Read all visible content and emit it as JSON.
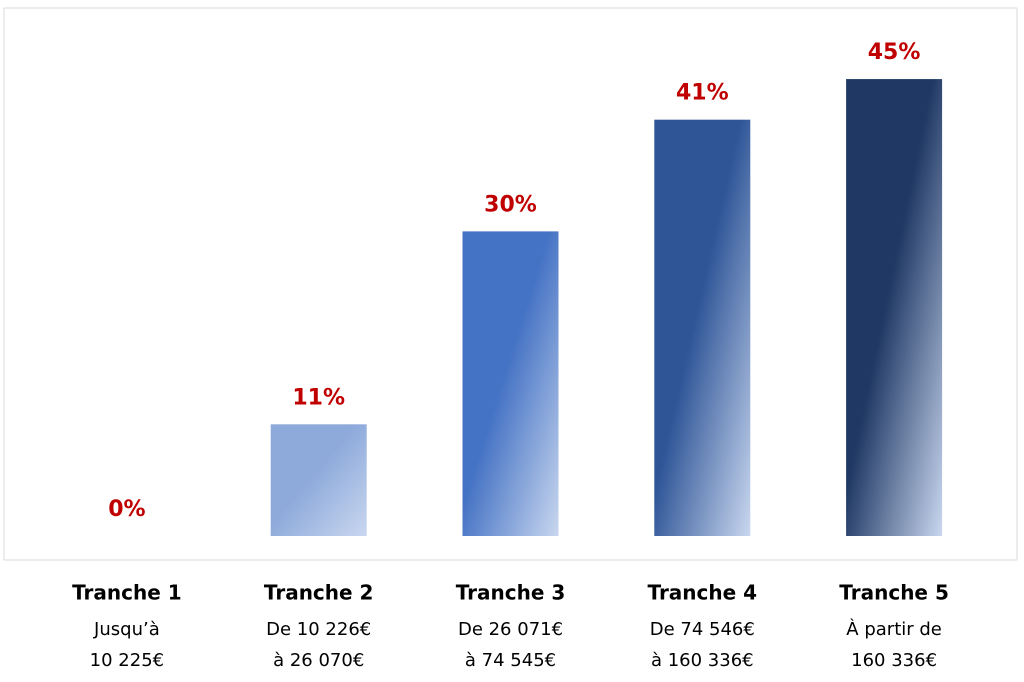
{
  "chart_data": {
    "type": "bar",
    "categories": [
      "Tranche 1",
      "Tranche 2",
      "Tranche 3",
      "Tranche 4",
      "Tranche 5"
    ],
    "category_ranges": [
      [
        "Jusqu’à",
        "10 225€"
      ],
      [
        "De 10 226€",
        "à 26 070€"
      ],
      [
        "De 26 071€",
        "à 74 545€"
      ],
      [
        "De 74 546€",
        "à 160 336€"
      ],
      [
        "À partir de",
        "160 336€"
      ]
    ],
    "values": [
      0,
      11,
      30,
      41,
      45
    ],
    "value_labels": [
      "0%",
      "11%",
      "30%",
      "41%",
      "45%"
    ],
    "colors": [
      "#8eaadb",
      "#8eaadb",
      "#4472c4",
      "#2f5597",
      "#1f3864"
    ],
    "ylim": [
      0,
      52
    ]
  }
}
